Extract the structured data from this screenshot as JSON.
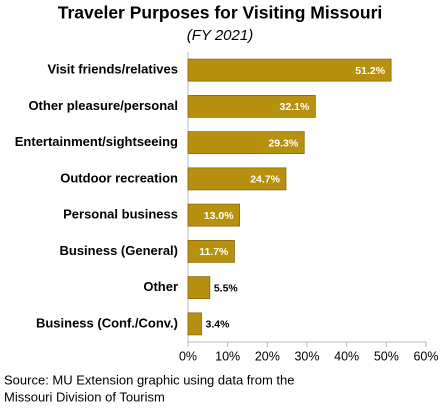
{
  "chart_data": {
    "type": "bar",
    "orientation": "horizontal",
    "title": "Traveler Purposes for Visiting Missouri",
    "subtitle": "(FY 2021)",
    "categories": [
      "Visit friends/relatives",
      "Other pleasure/personal",
      "Entertainment/sightseeing",
      "Outdoor recreation",
      "Personal business",
      "Business (General)",
      "Other",
      "Business (Conf./Conv.)"
    ],
    "values": [
      51.2,
      32.1,
      29.3,
      24.7,
      13.0,
      11.7,
      5.5,
      3.4
    ],
    "value_labels": [
      "51.2%",
      "32.1%",
      "29.3%",
      "24.7%",
      "13.0%",
      "11.7%",
      "5.5%",
      "3.4%"
    ],
    "color": "#b8900f",
    "xlim": [
      0,
      60
    ],
    "xticks": [
      {
        "value": 0,
        "label": "0%"
      },
      {
        "value": 10,
        "label": "10%"
      },
      {
        "value": 20,
        "label": "20%"
      },
      {
        "value": 30,
        "label": "30%"
      },
      {
        "value": 40,
        "label": "40%"
      },
      {
        "value": 50,
        "label": "50%"
      },
      {
        "value": 60,
        "label": "60%"
      }
    ],
    "grid": false,
    "source": [
      "Source: MU Extension graphic using data from the",
      "Missouri Division of Tourism"
    ]
  }
}
